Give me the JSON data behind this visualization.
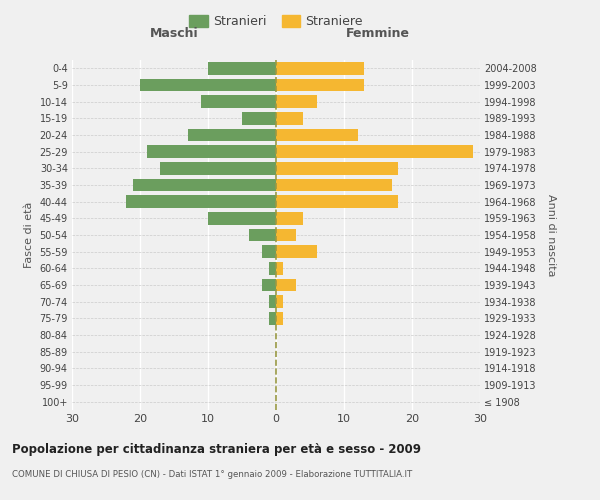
{
  "age_groups": [
    "100+",
    "95-99",
    "90-94",
    "85-89",
    "80-84",
    "75-79",
    "70-74",
    "65-69",
    "60-64",
    "55-59",
    "50-54",
    "45-49",
    "40-44",
    "35-39",
    "30-34",
    "25-29",
    "20-24",
    "15-19",
    "10-14",
    "5-9",
    "0-4"
  ],
  "birth_years": [
    "≤ 1908",
    "1909-1913",
    "1914-1918",
    "1919-1923",
    "1924-1928",
    "1929-1933",
    "1934-1938",
    "1939-1943",
    "1944-1948",
    "1949-1953",
    "1954-1958",
    "1959-1963",
    "1964-1968",
    "1969-1973",
    "1974-1978",
    "1979-1983",
    "1984-1988",
    "1989-1993",
    "1994-1998",
    "1999-2003",
    "2004-2008"
  ],
  "males": [
    0,
    0,
    0,
    0,
    0,
    1,
    1,
    2,
    1,
    2,
    4,
    10,
    22,
    21,
    17,
    19,
    13,
    5,
    11,
    20,
    10
  ],
  "females": [
    0,
    0,
    0,
    0,
    0,
    1,
    1,
    3,
    1,
    6,
    3,
    4,
    18,
    17,
    18,
    29,
    12,
    4,
    6,
    13,
    13
  ],
  "male_color": "#6b9e5e",
  "female_color": "#f5b731",
  "background_color": "#f0f0f0",
  "grid_color": "#ffffff",
  "title": "Popolazione per cittadinanza straniera per età e sesso - 2009",
  "subtitle": "COMUNE DI CHIUSA DI PESIO (CN) - Dati ISTAT 1° gennaio 2009 - Elaborazione TUTTITALIA.IT",
  "xlabel_left": "Maschi",
  "xlabel_right": "Femmine",
  "ylabel_left": "Fasce di età",
  "ylabel_right": "Anni di nascita",
  "legend_male": "Stranieri",
  "legend_female": "Straniere",
  "xlim": 30
}
